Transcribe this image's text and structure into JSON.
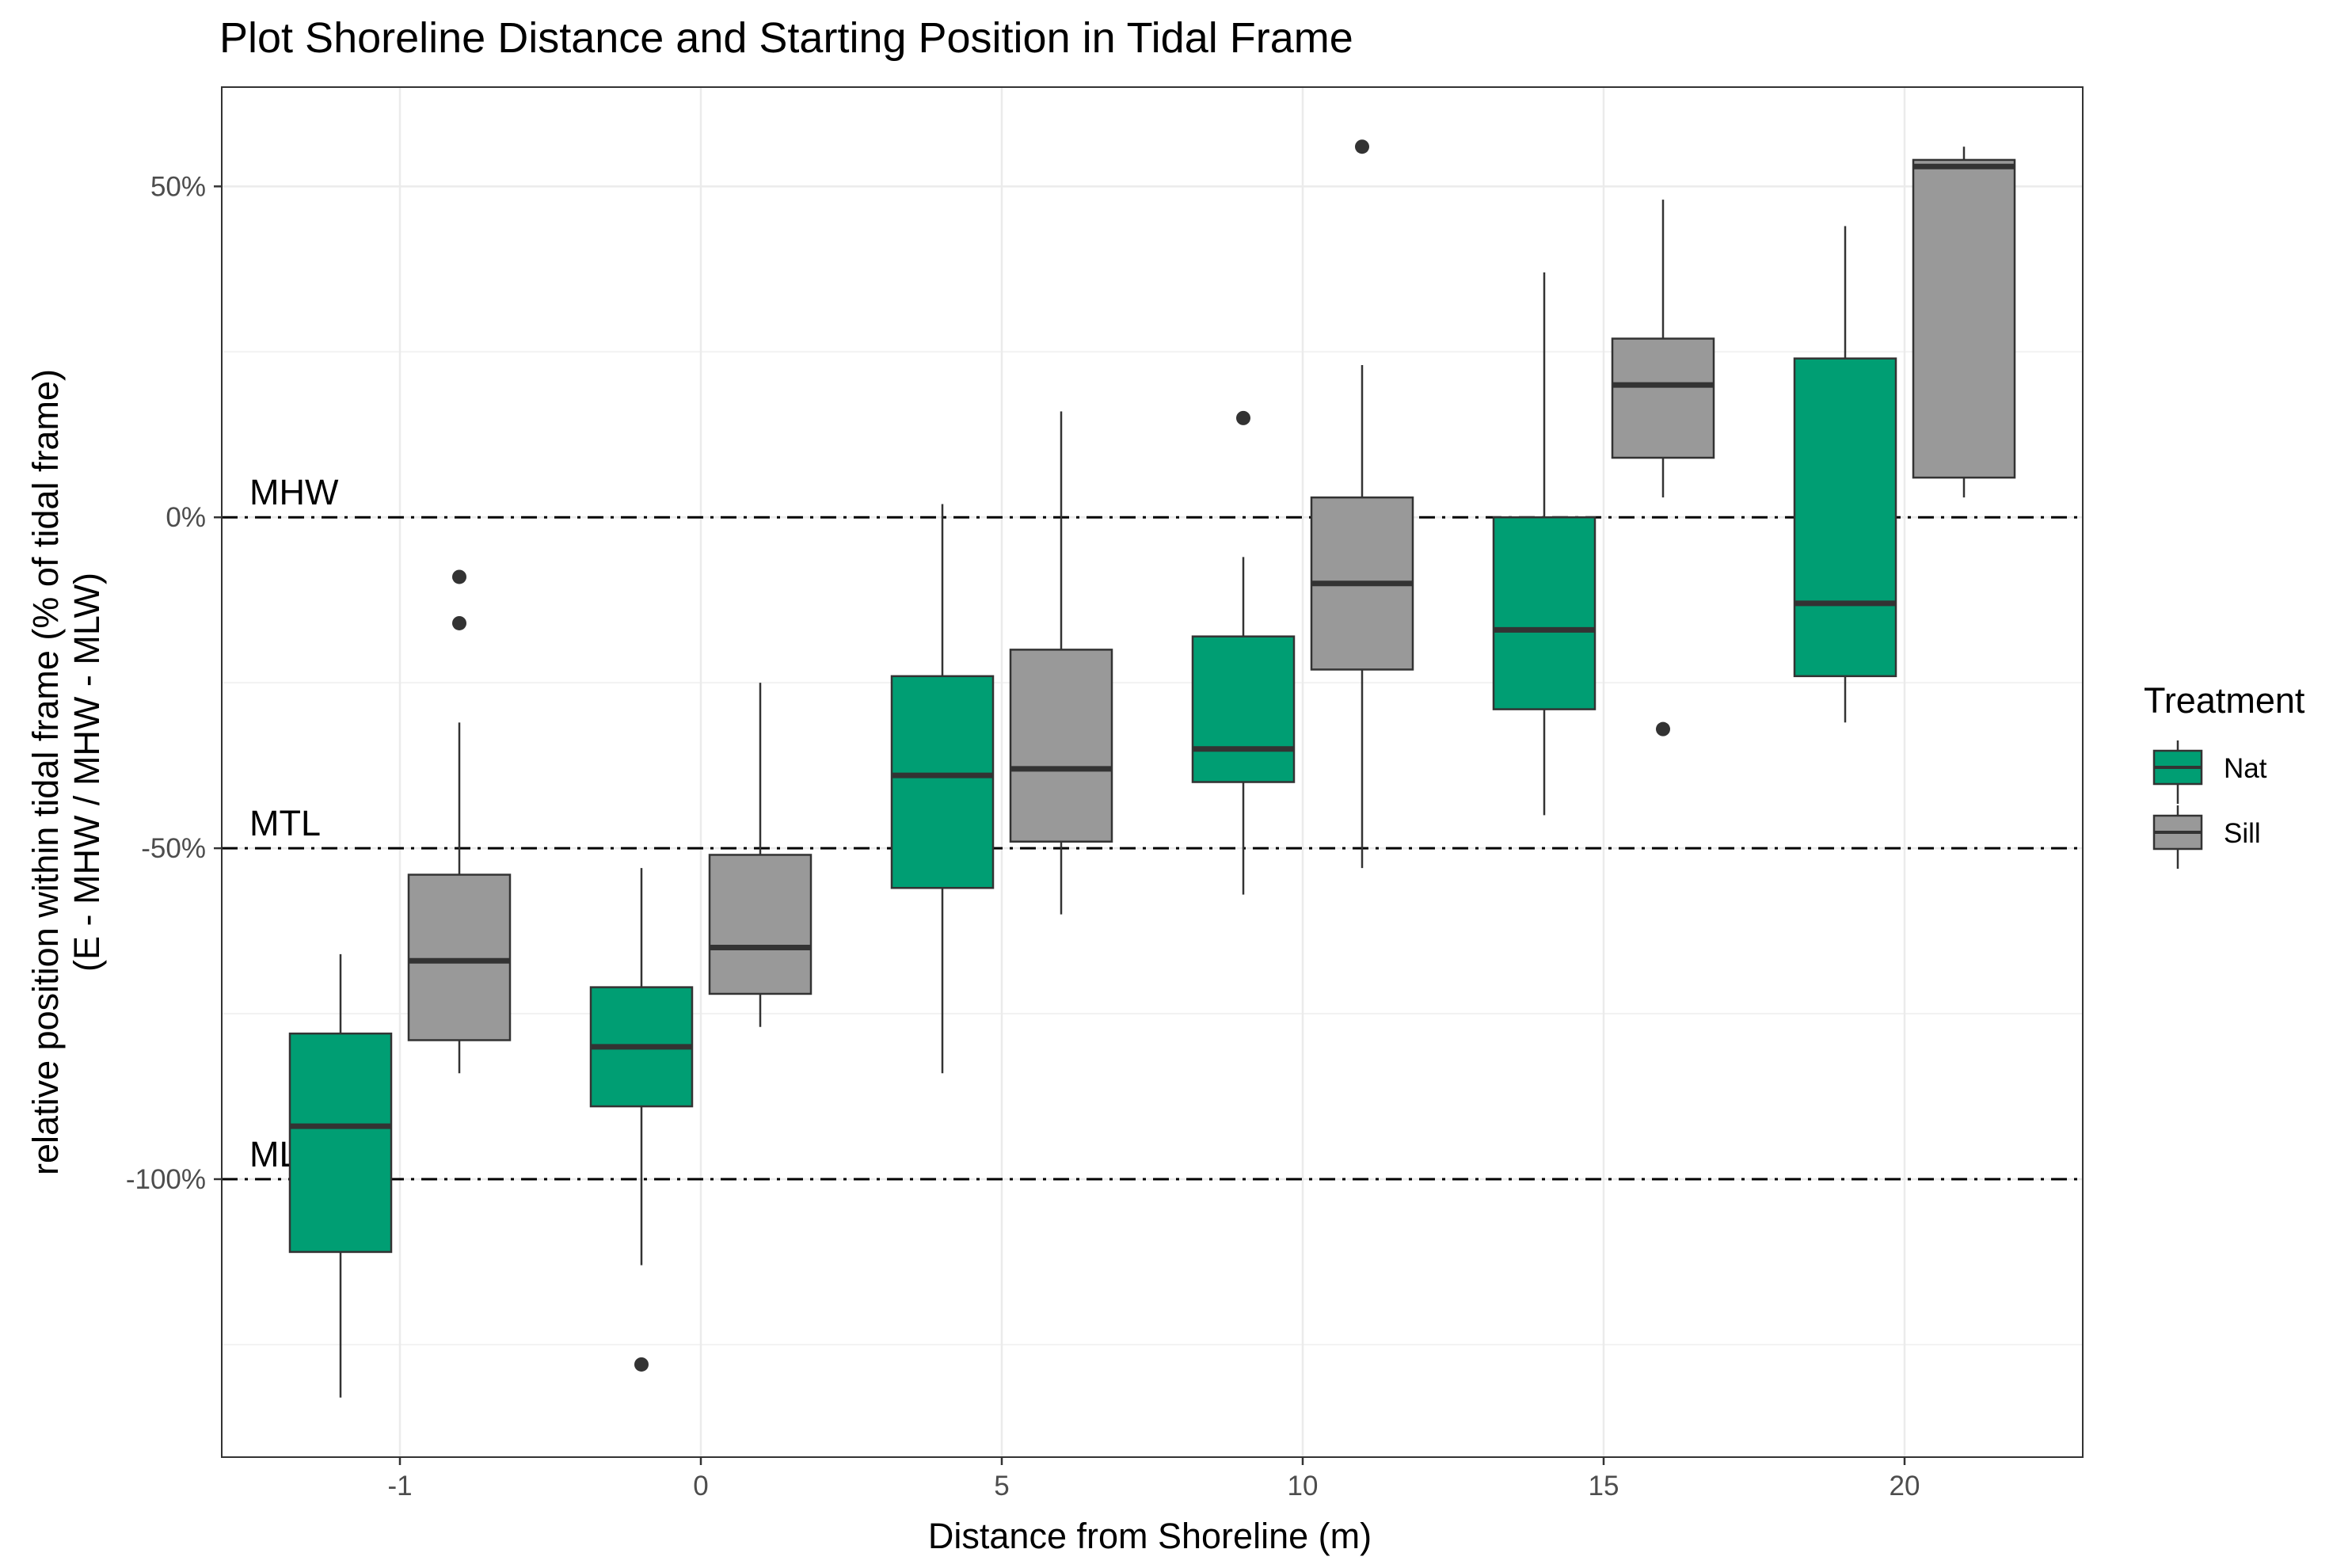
{
  "chart_data": {
    "type": "box",
    "title": "Plot Shoreline Distance and Starting Position in Tidal Frame",
    "xlabel": "Distance from Shoreline (m)",
    "ylabel_line1": "relative position within tidal frame (% of tidal frame)",
    "ylabel_line2": "(E - MHW / MHW - MLW)",
    "x_categories": [
      "-1",
      "0",
      "5",
      "10",
      "15",
      "20"
    ],
    "y_ticks": [
      {
        "value": 50,
        "label": "50%"
      },
      {
        "value": 0,
        "label": "0%"
      },
      {
        "value": -50,
        "label": "-50%"
      },
      {
        "value": -100,
        "label": "-100%"
      }
    ],
    "ylim": [
      -142,
      65
    ],
    "grid": true,
    "legend": {
      "title": "Treatment",
      "position": "right",
      "entries": [
        {
          "name": "Nat",
          "color": "#009E73"
        },
        {
          "name": "Sill",
          "color": "#999999"
        }
      ]
    },
    "reference_lines": [
      {
        "label": "MHW",
        "y": 0
      },
      {
        "label": "MTL",
        "y": -50
      },
      {
        "label": "MLW",
        "y": -100
      }
    ],
    "series": [
      {
        "name": "Nat",
        "color": "#009E73",
        "boxes": [
          {
            "category": "-1",
            "whisker_low": -133,
            "q1": -111,
            "median": -92,
            "q3": -78,
            "whisker_high": -66,
            "outliers": []
          },
          {
            "category": "0",
            "whisker_low": -113,
            "q1": -89,
            "median": -80,
            "q3": -71,
            "whisker_high": -53,
            "outliers": [
              -128
            ]
          },
          {
            "category": "5",
            "whisker_low": -84,
            "q1": -56,
            "median": -39,
            "q3": -24,
            "whisker_high": 2,
            "outliers": []
          },
          {
            "category": "10",
            "whisker_low": -57,
            "q1": -40,
            "median": -35,
            "q3": -18,
            "whisker_high": -6,
            "outliers": [
              15
            ]
          },
          {
            "category": "15",
            "whisker_low": -45,
            "q1": -29,
            "median": -17,
            "q3": 0,
            "whisker_high": 37,
            "outliers": []
          },
          {
            "category": "20",
            "whisker_low": -31,
            "q1": -24,
            "median": -13,
            "q3": 24,
            "whisker_high": 44,
            "outliers": []
          }
        ]
      },
      {
        "name": "Sill",
        "color": "#999999",
        "boxes": [
          {
            "category": "-1",
            "whisker_low": -84,
            "q1": -79,
            "median": -67,
            "q3": -54,
            "whisker_high": -31,
            "outliers": [
              -9,
              -16
            ]
          },
          {
            "category": "0",
            "whisker_low": -77,
            "q1": -72,
            "median": -65,
            "q3": -51,
            "whisker_high": -25,
            "outliers": []
          },
          {
            "category": "5",
            "whisker_low": -60,
            "q1": -49,
            "median": -38,
            "q3": -20,
            "whisker_high": 16,
            "outliers": []
          },
          {
            "category": "10",
            "whisker_low": -53,
            "q1": -23,
            "median": -10,
            "q3": 3,
            "whisker_high": 23,
            "outliers": [
              56
            ]
          },
          {
            "category": "15",
            "whisker_low": 3,
            "q1": 9,
            "median": 20,
            "q3": 27,
            "whisker_high": 48,
            "outliers": [
              -32
            ]
          },
          {
            "category": "20",
            "whisker_low": 3,
            "q1": 6,
            "median": 53,
            "q3": 54,
            "whisker_high": 56,
            "outliers": []
          }
        ]
      }
    ]
  }
}
